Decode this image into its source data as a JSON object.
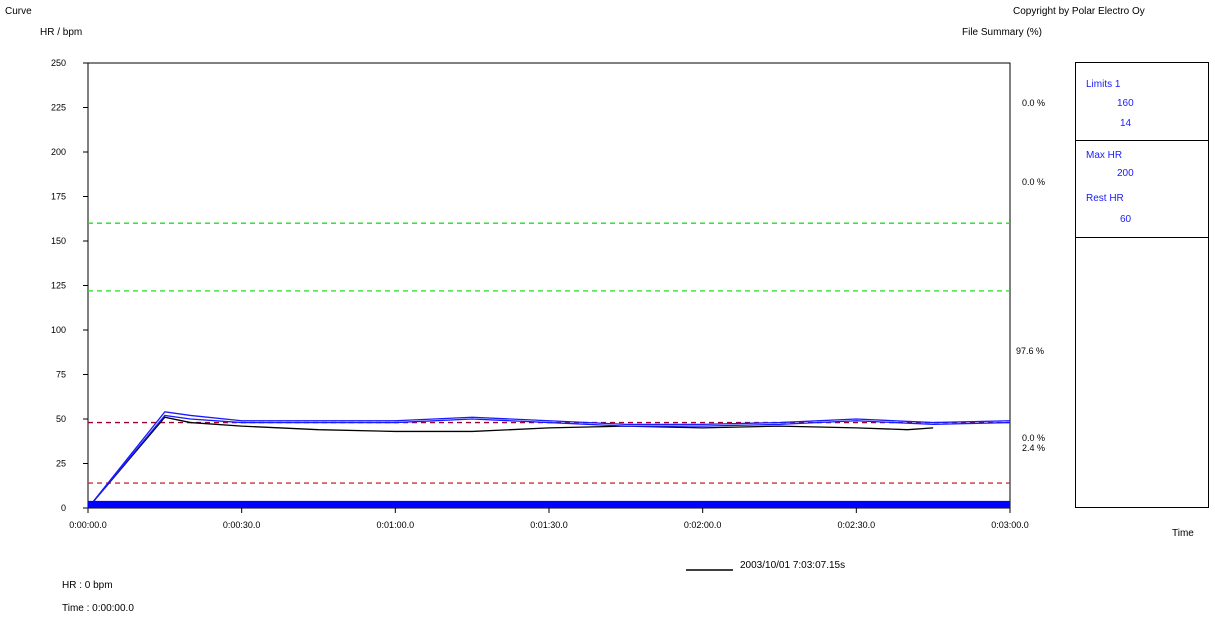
{
  "header": {
    "curve_label": "Curve",
    "unit_label": "HR / bpm",
    "copyright": "Copyright by Polar Electro Oy",
    "summary_label": "File Summary (%)"
  },
  "panel": {
    "limits_label": "Limits 1",
    "limit_upper": "160",
    "limit_lower": "14",
    "max_hr_label": "Max HR",
    "max_hr_value": "200",
    "rest_hr_label": "Rest HR",
    "rest_hr_value": "60",
    "time_label": "Time"
  },
  "percentages": [
    "0.0 %",
    "0.0 %",
    "97.6 %",
    "0.0 %",
    "2.4 %"
  ],
  "status": {
    "hr": "HR : 0 bpm",
    "time": "Time : 0:00:00.0"
  },
  "colors": {
    "series_main": "#1a1aff",
    "series_black": "#000000",
    "limit_green": "#22dd22",
    "limit_maroon": "#990033",
    "limit_red": "#cc3333",
    "base_band": "#0000ff",
    "panel_text": "#1a1aff"
  },
  "chart_data": {
    "type": "line",
    "title": "",
    "xlabel": "",
    "ylabel": "HR / bpm",
    "xlim": [
      0,
      180
    ],
    "ylim": [
      0,
      250
    ],
    "x_tick_labels": [
      "0:00:00.0",
      "0:00:30.0",
      "0:01:00.0",
      "0:01:30.0",
      "0:02:00.0",
      "0:02:30.0",
      "0:03:00.0"
    ],
    "x_tick_values": [
      0,
      30,
      60,
      90,
      120,
      150,
      180
    ],
    "y_ticks": [
      0,
      25,
      50,
      75,
      100,
      125,
      150,
      175,
      200,
      225,
      250
    ],
    "horizontal_lines": [
      {
        "value": 160,
        "color": "#22dd22",
        "style": "dashed"
      },
      {
        "value": 122,
        "color": "#22dd22",
        "style": "dashed"
      },
      {
        "value": 48,
        "color": "#990033",
        "style": "dashed"
      },
      {
        "value": 14,
        "color": "#cc3333",
        "style": "dashed"
      }
    ],
    "series": [
      {
        "name": "2003/10/01 7:03:07.15s",
        "color": "#000000",
        "x": [
          0,
          15,
          20,
          30,
          45,
          60,
          75,
          90,
          105,
          120,
          135,
          150,
          160,
          165
        ],
        "values": [
          0,
          51,
          48,
          46,
          44,
          43,
          43,
          45,
          46,
          45,
          46,
          45,
          44,
          45
        ]
      },
      {
        "color": "#1a1aff",
        "x": [
          0,
          15,
          20,
          30,
          45,
          60,
          75,
          90,
          105,
          120,
          135,
          150,
          165,
          180
        ],
        "values": [
          0,
          54,
          52,
          49,
          49,
          49,
          51,
          49,
          47,
          47,
          48,
          50,
          48,
          49
        ]
      },
      {
        "color": "#1a1aff",
        "x": [
          0,
          15,
          20,
          30,
          45,
          60,
          75,
          90,
          105,
          120,
          135,
          150,
          165,
          180
        ],
        "values": [
          0,
          52,
          50,
          48,
          48,
          48,
          50,
          48,
          46,
          46,
          47,
          49,
          47,
          48
        ]
      }
    ],
    "base_band": {
      "color": "#0000ff",
      "value_low": 0,
      "value_high": 4
    },
    "legend": {
      "label": "2003/10/01 7:03:07.15s",
      "position": "bottom"
    }
  }
}
